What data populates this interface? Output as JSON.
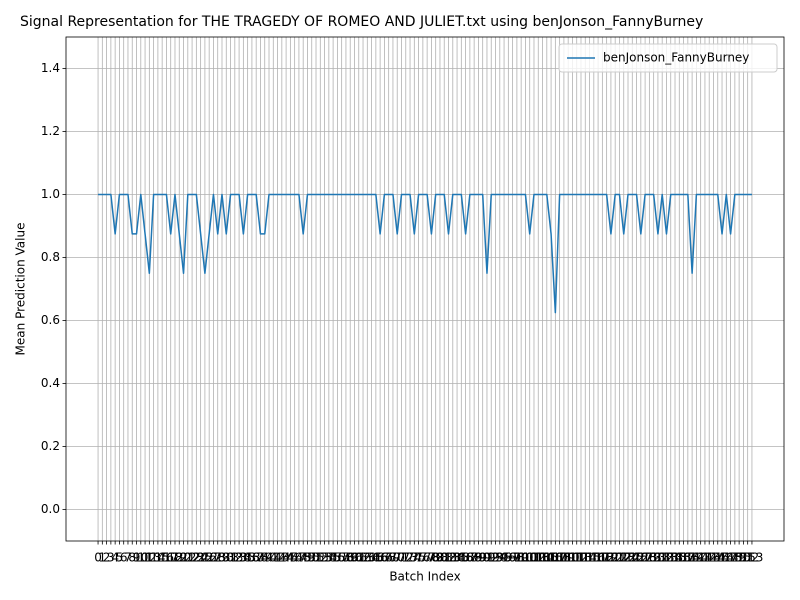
{
  "chart_data": {
    "type": "line",
    "title": "Signal Representation for THE TRAGEDY OF ROMEO AND JULIET.txt using benJonson_FannyBurney",
    "x_label": "Batch Index",
    "y_label": "Mean Prediction Value",
    "x": [
      0,
      1,
      2,
      3,
      4,
      5,
      6,
      7,
      8,
      9,
      10,
      11,
      12,
      13,
      14,
      15,
      16,
      17,
      18,
      19,
      20,
      21,
      22,
      23,
      24,
      25,
      26,
      27,
      28,
      29,
      30,
      31,
      32,
      33,
      34,
      35,
      36,
      37,
      38,
      39,
      40,
      41,
      42,
      43,
      44,
      45,
      46,
      47,
      48,
      49,
      50,
      51,
      52,
      53,
      54,
      55,
      56,
      57,
      58,
      59,
      60,
      61,
      62,
      63,
      64,
      65,
      66,
      67,
      68,
      69,
      70,
      71,
      72,
      73,
      74,
      75,
      76,
      77,
      78,
      79,
      80,
      81,
      82,
      83,
      84,
      85,
      86,
      87,
      88,
      89,
      90,
      91,
      92,
      93,
      94,
      95,
      96,
      97,
      98,
      99,
      100,
      101,
      102,
      103,
      104,
      105,
      106,
      107,
      108,
      109,
      110,
      111,
      112,
      113,
      114,
      115,
      116,
      117,
      118,
      119,
      120,
      121,
      122,
      123,
      124,
      125,
      126,
      127,
      128,
      129,
      130,
      131,
      132,
      133,
      134,
      135,
      136,
      137,
      138,
      139,
      140,
      141,
      142,
      143,
      144,
      145,
      146,
      147,
      148,
      149,
      150,
      151,
      152,
      153
    ],
    "series": [
      {
        "name": "benJonson_FannyBurney",
        "color": "#1f77b4",
        "values": [
          1,
          1,
          1,
          1,
          0.875,
          1,
          1,
          1,
          0.875,
          0.875,
          1,
          0.875,
          0.75,
          1,
          1,
          1,
          1,
          0.875,
          1,
          0.875,
          0.75,
          1,
          1,
          1,
          0.875,
          0.75,
          0.875,
          1,
          0.875,
          1,
          0.875,
          1,
          1,
          1,
          0.875,
          1,
          1,
          1,
          0.875,
          0.875,
          1,
          1,
          1,
          1,
          1,
          1,
          1,
          1,
          0.875,
          1,
          1,
          1,
          1,
          1,
          1,
          1,
          1,
          1,
          1,
          1,
          1,
          1,
          1,
          1,
          1,
          1,
          0.875,
          1,
          1,
          1,
          0.875,
          1,
          1,
          1,
          0.875,
          1,
          1,
          1,
          0.875,
          1,
          1,
          1,
          0.875,
          1,
          1,
          1,
          0.875,
          1,
          1,
          1,
          1,
          0.75,
          1,
          1,
          1,
          1,
          1,
          1,
          1,
          1,
          1,
          0.875,
          1,
          1,
          1,
          1,
          0.875,
          0.625,
          1,
          1,
          1,
          1,
          1,
          1,
          1,
          1,
          1,
          1,
          1,
          1,
          0.875,
          1,
          1,
          0.875,
          1,
          1,
          1,
          0.875,
          1,
          1,
          1,
          0.875,
          1,
          0.875,
          1,
          1,
          1,
          1,
          1,
          0.75,
          1,
          1,
          1,
          1,
          1,
          1,
          0.875,
          1,
          0.875,
          1,
          1,
          1,
          1,
          1
        ]
      }
    ],
    "xlim": [
      -7.5,
      160.5
    ],
    "xticks": [
      0,
      1,
      2,
      3,
      4,
      5,
      6,
      7,
      8,
      9,
      10,
      11,
      12,
      13,
      14,
      15,
      16,
      17,
      18,
      19,
      20,
      21,
      22,
      23,
      24,
      25,
      26,
      27,
      28,
      29,
      30,
      31,
      32,
      33,
      34,
      35,
      36,
      37,
      38,
      39,
      40,
      41,
      42,
      43,
      44,
      45,
      46,
      47,
      48,
      49,
      50,
      51,
      52,
      53,
      54,
      55,
      56,
      57,
      58,
      59,
      60,
      61,
      62,
      63,
      64,
      65,
      66,
      67,
      68,
      69,
      70,
      71,
      72,
      73,
      74,
      75,
      76,
      77,
      78,
      79,
      80,
      81,
      82,
      83,
      84,
      85,
      86,
      87,
      88,
      89,
      90,
      91,
      92,
      93,
      94,
      95,
      96,
      97,
      98,
      99,
      100,
      101,
      102,
      103,
      104,
      105,
      106,
      107,
      108,
      109,
      110,
      111,
      112,
      113,
      114,
      115,
      116,
      117,
      118,
      119,
      120,
      121,
      122,
      123,
      124,
      125,
      126,
      127,
      128,
      129,
      130,
      131,
      132,
      133,
      134,
      135,
      136,
      137,
      138,
      139,
      140,
      141,
      142,
      143,
      144,
      145,
      146,
      147,
      148,
      149,
      150,
      151,
      152,
      153
    ],
    "ylim": [
      -0.1,
      1.5
    ],
    "yticks": [
      {
        "value": 0,
        "label": "0.0"
      },
      0.2,
      0.4,
      0.6,
      0.8,
      {
        "value": 1,
        "label": "1.0"
      },
      1.2,
      1.4
    ],
    "grid": true,
    "legend": "upper right"
  }
}
